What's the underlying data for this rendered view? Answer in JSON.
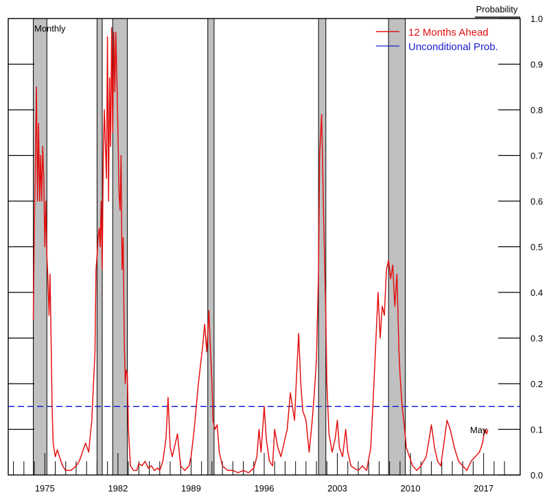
{
  "chart_data": {
    "type": "line",
    "title": "",
    "annotations": {
      "frequency": "Monthly",
      "last_point": "May"
    },
    "ylabel": "Probability",
    "ylim": [
      0.0,
      1.0
    ],
    "xlim": [
      1971.5,
      2020.5
    ],
    "x_ticks": [
      1975,
      1982,
      1989,
      1996,
      2003,
      2010,
      2017
    ],
    "y_ticks": [
      "0.0",
      "0.1",
      "0.2",
      "0.3",
      "0.4",
      "0.5",
      "0.6",
      "0.7",
      "0.8",
      "0.9",
      "1.0"
    ],
    "legend": {
      "placement": "top-right",
      "entries": [
        "12 Months Ahead",
        "Unconditional Prob."
      ]
    },
    "colors": {
      "forecast": "#e31010",
      "unconditional": "#1a1ad6",
      "recession": "#c0c0c0"
    },
    "recessions": [
      [
        1973.9,
        1975.2
      ],
      [
        1980.0,
        1980.5
      ],
      [
        1981.5,
        1982.9
      ],
      [
        1990.6,
        1991.2
      ],
      [
        2001.2,
        2001.9
      ],
      [
        2007.9,
        2009.5
      ]
    ],
    "unconditional_probability": 0.15,
    "series": [
      {
        "name": "12 Months Ahead",
        "points": [
          [
            1973.9,
            0.34
          ],
          [
            1974.0,
            0.55
          ],
          [
            1974.1,
            0.7
          ],
          [
            1974.2,
            0.85
          ],
          [
            1974.3,
            0.6
          ],
          [
            1974.4,
            0.77
          ],
          [
            1974.5,
            0.6
          ],
          [
            1974.6,
            0.7
          ],
          [
            1974.7,
            0.6
          ],
          [
            1974.8,
            0.72
          ],
          [
            1974.9,
            0.65
          ],
          [
            1975.0,
            0.5
          ],
          [
            1975.1,
            0.6
          ],
          [
            1975.2,
            0.48
          ],
          [
            1975.3,
            0.43
          ],
          [
            1975.4,
            0.35
          ],
          [
            1975.5,
            0.44
          ],
          [
            1975.6,
            0.3
          ],
          [
            1975.7,
            0.15
          ],
          [
            1975.8,
            0.07
          ],
          [
            1976.0,
            0.04
          ],
          [
            1976.2,
            0.055
          ],
          [
            1976.4,
            0.04
          ],
          [
            1976.7,
            0.02
          ],
          [
            1977.0,
            0.01
          ],
          [
            1977.5,
            0.01
          ],
          [
            1978.0,
            0.02
          ],
          [
            1978.3,
            0.03
          ],
          [
            1978.6,
            0.05
          ],
          [
            1978.9,
            0.07
          ],
          [
            1979.2,
            0.05
          ],
          [
            1979.5,
            0.12
          ],
          [
            1979.8,
            0.27
          ],
          [
            1979.9,
            0.45
          ],
          [
            1980.0,
            0.48
          ],
          [
            1980.1,
            0.52
          ],
          [
            1980.2,
            0.54
          ],
          [
            1980.3,
            0.5
          ],
          [
            1980.4,
            0.6
          ],
          [
            1980.5,
            0.45
          ],
          [
            1980.6,
            0.7
          ],
          [
            1980.7,
            0.8
          ],
          [
            1980.8,
            0.72
          ],
          [
            1980.9,
            0.65
          ],
          [
            1981.0,
            0.96
          ],
          [
            1981.1,
            0.6
          ],
          [
            1981.2,
            0.87
          ],
          [
            1981.3,
            0.72
          ],
          [
            1981.4,
            0.98
          ],
          [
            1981.5,
            0.75
          ],
          [
            1981.6,
            0.97
          ],
          [
            1981.7,
            0.84
          ],
          [
            1981.8,
            0.97
          ],
          [
            1981.9,
            0.87
          ],
          [
            1982.0,
            0.75
          ],
          [
            1982.1,
            0.62
          ],
          [
            1982.2,
            0.58
          ],
          [
            1982.3,
            0.7
          ],
          [
            1982.4,
            0.45
          ],
          [
            1982.5,
            0.52
          ],
          [
            1982.6,
            0.3
          ],
          [
            1982.7,
            0.2
          ],
          [
            1982.8,
            0.23
          ],
          [
            1982.9,
            0.22
          ],
          [
            1983.0,
            0.1
          ],
          [
            1983.2,
            0.02
          ],
          [
            1983.5,
            0.01
          ],
          [
            1983.8,
            0.01
          ],
          [
            1984.0,
            0.025
          ],
          [
            1984.3,
            0.02
          ],
          [
            1984.6,
            0.03
          ],
          [
            1984.9,
            0.015
          ],
          [
            1985.2,
            0.02
          ],
          [
            1985.5,
            0.01
          ],
          [
            1985.8,
            0.015
          ],
          [
            1986.0,
            0.01
          ],
          [
            1986.3,
            0.03
          ],
          [
            1986.6,
            0.08
          ],
          [
            1986.8,
            0.17
          ],
          [
            1987.0,
            0.06
          ],
          [
            1987.2,
            0.04
          ],
          [
            1987.5,
            0.07
          ],
          [
            1987.7,
            0.09
          ],
          [
            1988.0,
            0.02
          ],
          [
            1988.4,
            0.01
          ],
          [
            1988.8,
            0.02
          ],
          [
            1989.0,
            0.04
          ],
          [
            1989.3,
            0.1
          ],
          [
            1989.5,
            0.15
          ],
          [
            1989.7,
            0.2
          ],
          [
            1989.9,
            0.24
          ],
          [
            1990.1,
            0.28
          ],
          [
            1990.3,
            0.33
          ],
          [
            1990.5,
            0.27
          ],
          [
            1990.7,
            0.36
          ],
          [
            1990.9,
            0.25
          ],
          [
            1991.0,
            0.2
          ],
          [
            1991.1,
            0.12
          ],
          [
            1991.3,
            0.1
          ],
          [
            1991.5,
            0.11
          ],
          [
            1991.7,
            0.05
          ],
          [
            1992.0,
            0.02
          ],
          [
            1992.5,
            0.01
          ],
          [
            1993.0,
            0.01
          ],
          [
            1993.5,
            0.005
          ],
          [
            1994.0,
            0.01
          ],
          [
            1994.5,
            0.005
          ],
          [
            1995.0,
            0.015
          ],
          [
            1995.3,
            0.04
          ],
          [
            1995.5,
            0.1
          ],
          [
            1995.7,
            0.05
          ],
          [
            1996.0,
            0.15
          ],
          [
            1996.2,
            0.08
          ],
          [
            1996.5,
            0.03
          ],
          [
            1996.8,
            0.02
          ],
          [
            1997.0,
            0.1
          ],
          [
            1997.3,
            0.06
          ],
          [
            1997.6,
            0.04
          ],
          [
            1997.9,
            0.07
          ],
          [
            1998.2,
            0.1
          ],
          [
            1998.5,
            0.18
          ],
          [
            1998.7,
            0.15
          ],
          [
            1998.9,
            0.12
          ],
          [
            1999.1,
            0.22
          ],
          [
            1999.3,
            0.31
          ],
          [
            1999.5,
            0.2
          ],
          [
            1999.7,
            0.14
          ],
          [
            2000.0,
            0.12
          ],
          [
            2000.3,
            0.05
          ],
          [
            2000.6,
            0.12
          ],
          [
            2000.8,
            0.18
          ],
          [
            2001.0,
            0.25
          ],
          [
            2001.2,
            0.45
          ],
          [
            2001.3,
            0.7
          ],
          [
            2001.5,
            0.79
          ],
          [
            2001.7,
            0.55
          ],
          [
            2001.9,
            0.35
          ],
          [
            2002.0,
            0.2
          ],
          [
            2002.2,
            0.09
          ],
          [
            2002.5,
            0.05
          ],
          [
            2002.8,
            0.08
          ],
          [
            2003.0,
            0.12
          ],
          [
            2003.2,
            0.06
          ],
          [
            2003.5,
            0.04
          ],
          [
            2003.8,
            0.1
          ],
          [
            2004.0,
            0.05
          ],
          [
            2004.3,
            0.02
          ],
          [
            2004.6,
            0.015
          ],
          [
            2005.0,
            0.01
          ],
          [
            2005.4,
            0.02
          ],
          [
            2005.8,
            0.01
          ],
          [
            2006.2,
            0.06
          ],
          [
            2006.5,
            0.2
          ],
          [
            2006.7,
            0.3
          ],
          [
            2006.9,
            0.4
          ],
          [
            2007.1,
            0.3
          ],
          [
            2007.3,
            0.37
          ],
          [
            2007.5,
            0.35
          ],
          [
            2007.7,
            0.45
          ],
          [
            2007.9,
            0.47
          ],
          [
            2008.1,
            0.43
          ],
          [
            2008.3,
            0.46
          ],
          [
            2008.5,
            0.37
          ],
          [
            2008.7,
            0.44
          ],
          [
            2008.9,
            0.27
          ],
          [
            2009.0,
            0.22
          ],
          [
            2009.2,
            0.15
          ],
          [
            2009.4,
            0.11
          ],
          [
            2009.6,
            0.06
          ],
          [
            2009.9,
            0.04
          ],
          [
            2010.2,
            0.02
          ],
          [
            2010.6,
            0.01
          ],
          [
            2011.0,
            0.02
          ],
          [
            2011.5,
            0.04
          ],
          [
            2011.8,
            0.08
          ],
          [
            2012.0,
            0.11
          ],
          [
            2012.3,
            0.06
          ],
          [
            2012.6,
            0.03
          ],
          [
            2012.9,
            0.02
          ],
          [
            2013.2,
            0.07
          ],
          [
            2013.5,
            0.12
          ],
          [
            2013.8,
            0.1
          ],
          [
            2014.2,
            0.06
          ],
          [
            2014.6,
            0.03
          ],
          [
            2015.0,
            0.02
          ],
          [
            2015.4,
            0.01
          ],
          [
            2015.8,
            0.03
          ],
          [
            2016.2,
            0.04
          ],
          [
            2016.6,
            0.05
          ],
          [
            2016.9,
            0.07
          ],
          [
            2017.1,
            0.1
          ],
          [
            2017.3,
            0.09
          ],
          [
            2017.4,
            0.1
          ]
        ]
      },
      {
        "name": "Unconditional Prob.",
        "points": [
          [
            1971.5,
            0.15
          ],
          [
            2020.5,
            0.15
          ]
        ]
      }
    ]
  }
}
